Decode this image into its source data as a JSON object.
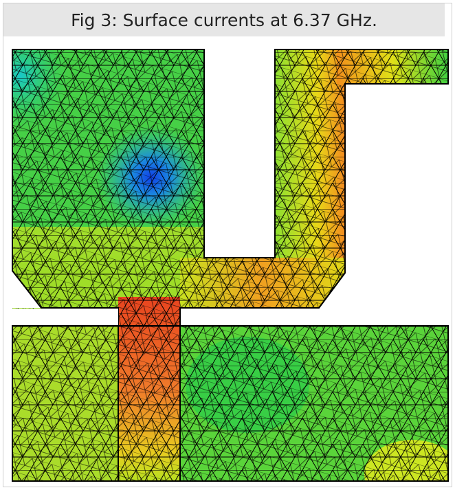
{
  "figure": {
    "caption": "Fig 3: Surface currents at 6.37 GHz."
  },
  "colors": {
    "low": "#1b6ef0",
    "mid_low": "#21c59a",
    "mid": "#3dd23a",
    "mid_high": "#d8ea10",
    "high": "#f59a1c",
    "max": "#e8441f",
    "mesh": "#000000"
  }
}
